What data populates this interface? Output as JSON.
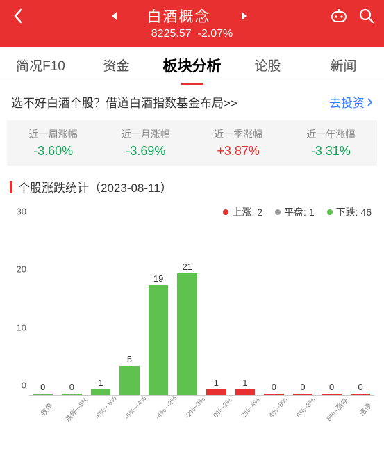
{
  "header": {
    "title": "白酒概念",
    "index_value": "8225.57",
    "change_pct": "-2.07%",
    "change_color": "#ffffff"
  },
  "tabs": {
    "items": [
      {
        "label": "简况F10",
        "active": false
      },
      {
        "label": "资金",
        "active": false
      },
      {
        "label": "板块分析",
        "active": true
      },
      {
        "label": "论股",
        "active": false
      },
      {
        "label": "新闻",
        "active": false
      }
    ]
  },
  "promo": {
    "text": "选不好白酒个股？借道白酒指数基金布局>>",
    "link_text": "去投资",
    "link_color": "#3d7eff"
  },
  "stats": [
    {
      "label": "近一周涨幅",
      "value": "-3.60%",
      "color": "#0aa858"
    },
    {
      "label": "近一月涨幅",
      "value": "-3.69%",
      "color": "#0aa858"
    },
    {
      "label": "近一季涨幅",
      "value": "+3.87%",
      "color": "#e93030"
    },
    {
      "label": "近一年涨幅",
      "value": "-3.31%",
      "color": "#0aa858"
    }
  ],
  "section": {
    "title": "个股涨跌统计（2023-08-11）"
  },
  "chart": {
    "type": "bar",
    "legend": [
      {
        "label": "上涨: 2",
        "color": "#e93030"
      },
      {
        "label": "平盘: 1",
        "color": "#999999"
      },
      {
        "label": "下跌: 46",
        "color": "#5fc14e"
      }
    ],
    "y_ticks": [
      0,
      10,
      20,
      30
    ],
    "ylim": [
      0,
      30
    ],
    "categories": [
      "跌停",
      "跌停~-8%",
      "-8%~-6%",
      "-6%~-4%",
      "-4%~-2%",
      "-2%~0%",
      "0%~2%",
      "2%~4%",
      "4%~6%",
      "6%~8%",
      "8%~涨停",
      "涨停"
    ],
    "values": [
      0,
      0,
      1,
      5,
      19,
      21,
      1,
      1,
      0,
      0,
      0,
      0
    ],
    "bar_colors": [
      "#5fc14e",
      "#5fc14e",
      "#5fc14e",
      "#5fc14e",
      "#5fc14e",
      "#5fc14e",
      "#e93030",
      "#e93030",
      "#e93030",
      "#e93030",
      "#e93030",
      "#e93030"
    ],
    "background_color": "#ffffff",
    "axis_color": "#cccccc",
    "label_fontsize": 13,
    "xlabel_fontsize": 10,
    "bar_width": 0.72
  },
  "colors": {
    "brand": "#e93030",
    "green": "#5fc14e",
    "text_green": "#0aa858",
    "grid_bg": "#f5f5f5"
  }
}
